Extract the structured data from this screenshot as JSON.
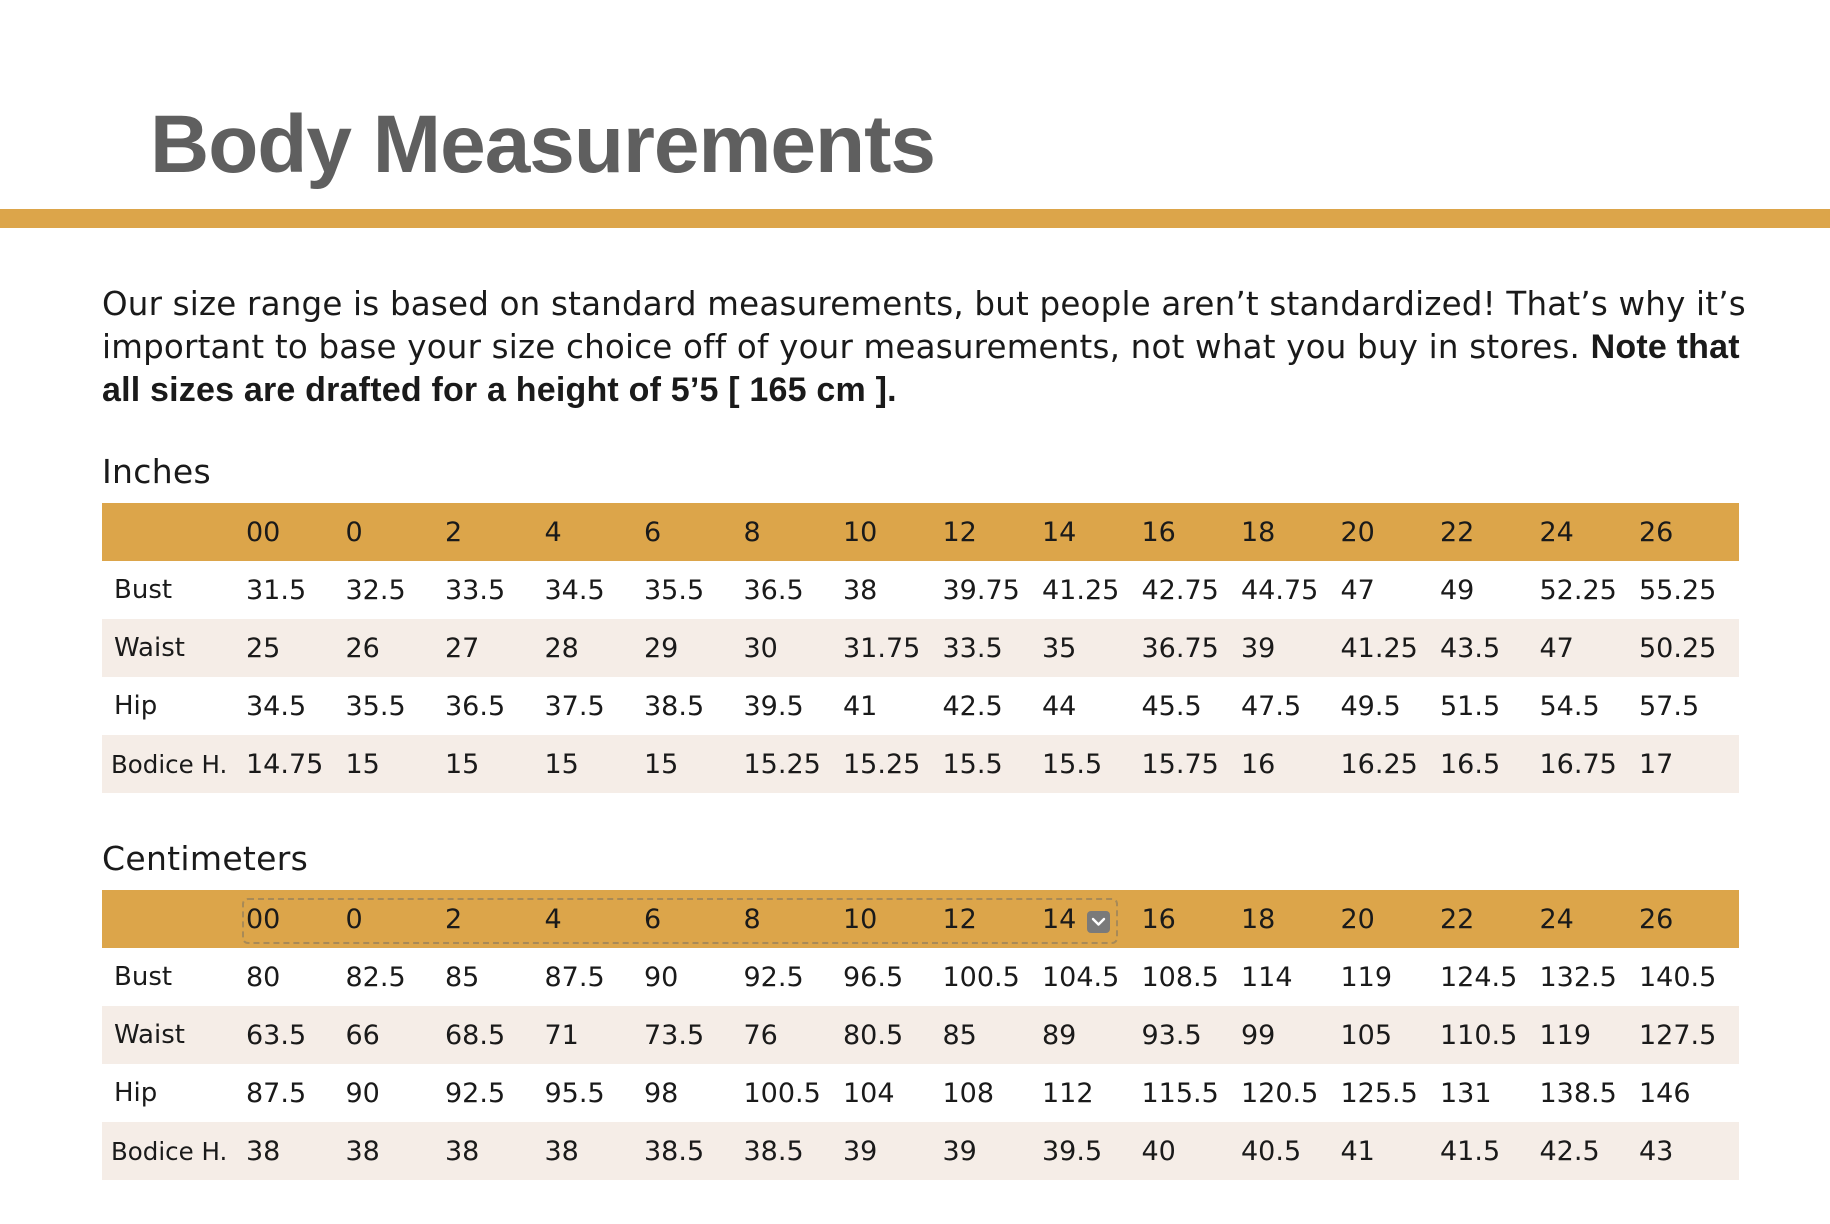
{
  "title": "Body Measurements",
  "intro": {
    "text": "Our size range is based on standard measurements, but people aren’t standardized! That’s why it’s important to base your size choice off of your measurements, not what you buy in stores.",
    "note": "Note that all sizes are drafted for a height of 5’5 [ 165 cm ]."
  },
  "colors": {
    "accent": "#dca54a",
    "title": "#5f5f5f",
    "row_alt": "#f5ede7"
  },
  "inches": {
    "label": "Inches",
    "sizes": [
      "00",
      "0",
      "2",
      "4",
      "6",
      "8",
      "10",
      "12",
      "14",
      "16",
      "18",
      "20",
      "22",
      "24",
      "26"
    ],
    "rows": [
      {
        "label": "Bust",
        "values": [
          "31.5",
          "32.5",
          "33.5",
          "34.5",
          "35.5",
          "36.5",
          "38",
          "39.75",
          "41.25",
          "42.75",
          "44.75",
          "47",
          "49",
          "52.25",
          "55.25"
        ]
      },
      {
        "label": "Waist",
        "values": [
          "25",
          "26",
          "27",
          "28",
          "29",
          "30",
          "31.75",
          "33.5",
          "35",
          "36.75",
          "39",
          "41.25",
          "43.5",
          "47",
          "50.25"
        ]
      },
      {
        "label": "Hip",
        "values": [
          "34.5",
          "35.5",
          "36.5",
          "37.5",
          "38.5",
          "39.5",
          "41",
          "42.5",
          "44",
          "45.5",
          "47.5",
          "49.5",
          "51.5",
          "54.5",
          "57.5"
        ]
      },
      {
        "label": "Bodice H.",
        "values": [
          "14.75",
          "15",
          "15",
          "15",
          "15",
          "15.25",
          "15.25",
          "15.5",
          "15.5",
          "15.75",
          "16",
          "16.25",
          "16.5",
          "16.75",
          "17"
        ]
      }
    ]
  },
  "centimeters": {
    "label": "Centimeters",
    "sizes": [
      "00",
      "0",
      "2",
      "4",
      "6",
      "8",
      "10",
      "12",
      "14",
      "16",
      "18",
      "20",
      "22",
      "24",
      "26"
    ],
    "rows": [
      {
        "label": "Bust",
        "values": [
          "80",
          "82.5",
          "85",
          "87.5",
          "90",
          "92.5",
          "96.5",
          "100.5",
          "104.5",
          "108.5",
          "114",
          "119",
          "124.5",
          "132.5",
          "140.5"
        ]
      },
      {
        "label": "Waist",
        "values": [
          "63.5",
          "66",
          "68.5",
          "71",
          "73.5",
          "76",
          "80.5",
          "85",
          "89",
          "93.5",
          "99",
          "105",
          "110.5",
          "119",
          "127.5"
        ]
      },
      {
        "label": "Hip",
        "values": [
          "87.5",
          "90",
          "92.5",
          "95.5",
          "98",
          "100.5",
          "104",
          "108",
          "112",
          "115.5",
          "120.5",
          "125.5",
          "131",
          "138.5",
          "146"
        ]
      },
      {
        "label": "Bodice H.",
        "values": [
          "38",
          "38",
          "38",
          "38",
          "38.5",
          "38.5",
          "39",
          "39",
          "39.5",
          "40",
          "40.5",
          "41",
          "41.5",
          "42.5",
          "43"
        ]
      }
    ]
  },
  "selection_dropdown_icon": "chevron-down-icon"
}
